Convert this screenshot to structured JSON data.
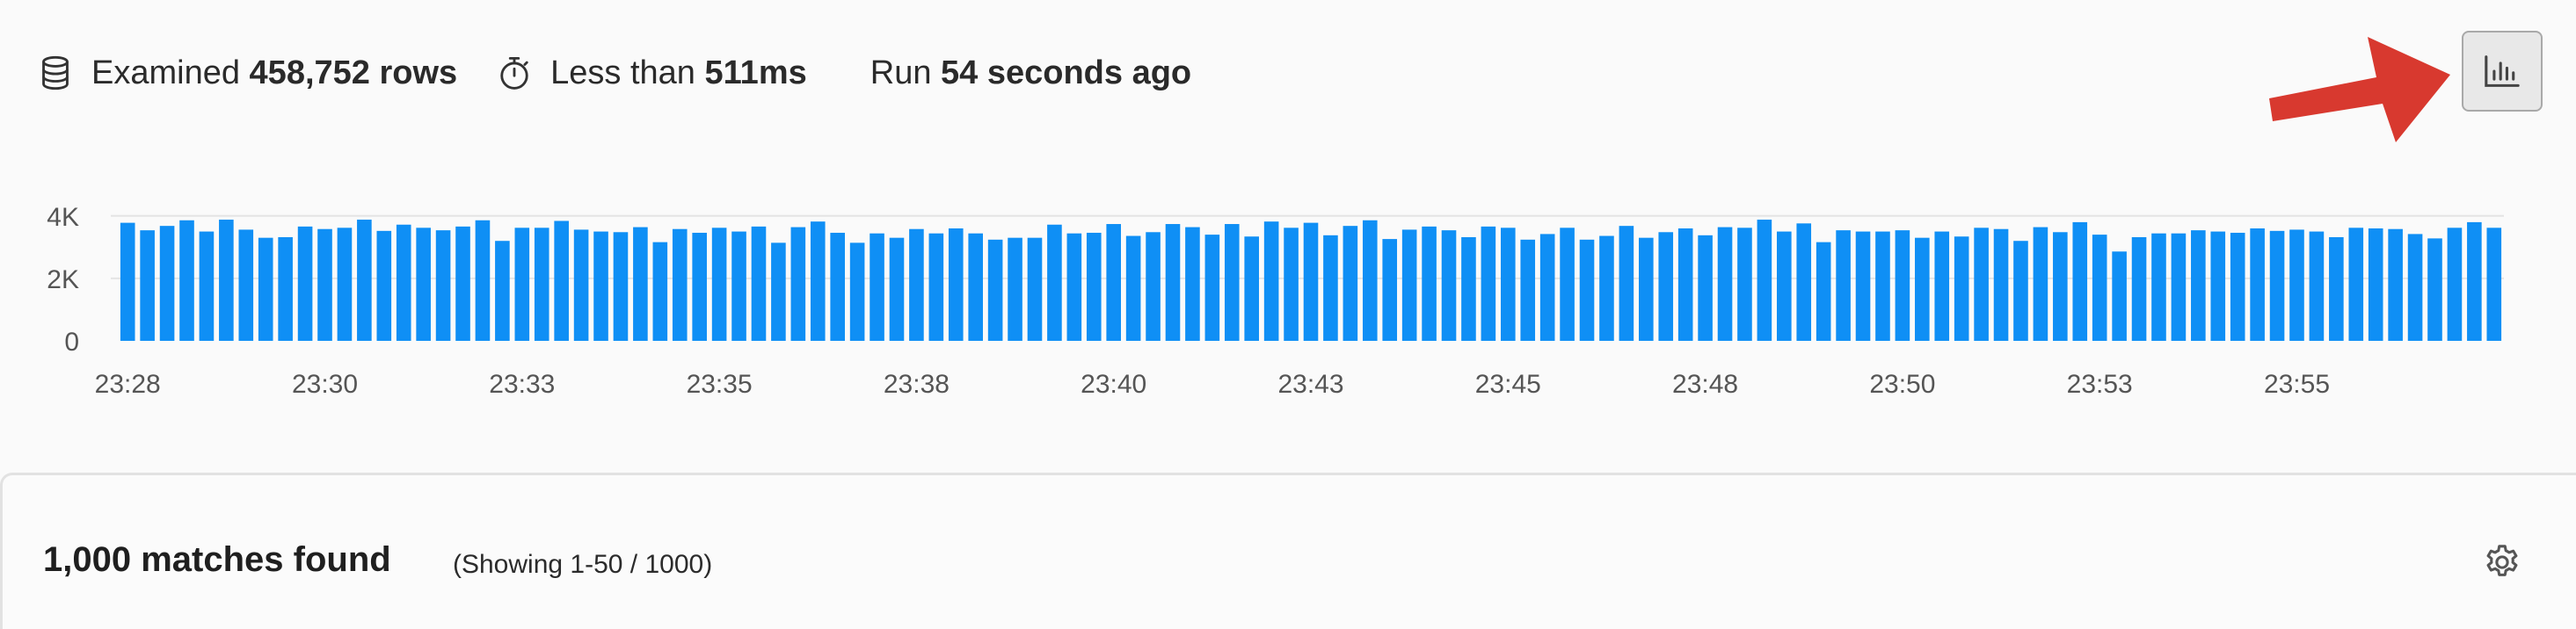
{
  "stats": {
    "examined_prefix": "Examined",
    "examined_value": "458,752 rows",
    "duration_prefix": "Less than",
    "duration_value": "511ms",
    "run_prefix": "Run",
    "run_value": "54 seconds ago"
  },
  "icons": {
    "database": "database-icon",
    "timer": "stopwatch-icon",
    "histogram_toggle": "bar-chart-icon",
    "annotation": "red-arrow",
    "settings": "gear-icon"
  },
  "colors": {
    "bar": "#0f8ff5",
    "annotation_arrow": "#d8392f",
    "button_bg": "#e8e8e8"
  },
  "chart_data": {
    "type": "bar",
    "title": "",
    "xlabel": "",
    "ylabel": "",
    "ylim": [
      0,
      4500
    ],
    "y_ticks": [
      "0",
      "2K",
      "4K"
    ],
    "y_tick_values": [
      0,
      2000,
      4000
    ],
    "x_ticks": [
      "23:28",
      "23:30",
      "23:33",
      "23:35",
      "23:38",
      "23:40",
      "23:43",
      "23:45",
      "23:48",
      "23:50",
      "23:53",
      "23:55"
    ],
    "x_tick_bar_index": [
      0,
      10,
      20,
      30,
      40,
      50,
      60,
      70,
      80,
      90,
      100,
      110
    ],
    "grid": "horizontal",
    "values": [
      3780,
      3540,
      3680,
      3860,
      3500,
      3880,
      3560,
      3300,
      3320,
      3660,
      3580,
      3620,
      3880,
      3520,
      3720,
      3620,
      3540,
      3660,
      3860,
      3200,
      3620,
      3620,
      3840,
      3560,
      3500,
      3480,
      3640,
      3160,
      3580,
      3460,
      3620,
      3500,
      3660,
      3140,
      3640,
      3820,
      3460,
      3140,
      3440,
      3300,
      3580,
      3440,
      3600,
      3440,
      3240,
      3300,
      3300,
      3720,
      3440,
      3460,
      3740,
      3360,
      3480,
      3740,
      3640,
      3400,
      3740,
      3340,
      3820,
      3620,
      3780,
      3380,
      3680,
      3860,
      3260,
      3560,
      3660,
      3540,
      3320,
      3660,
      3620,
      3240,
      3420,
      3620,
      3240,
      3360,
      3680,
      3300,
      3480,
      3600,
      3380,
      3640,
      3620,
      3880,
      3500,
      3760,
      3160,
      3540,
      3500,
      3500,
      3540,
      3300,
      3500,
      3340,
      3620,
      3580,
      3200,
      3640,
      3480,
      3800,
      3400,
      2860,
      3320,
      3440,
      3440,
      3540,
      3500,
      3460,
      3600,
      3520,
      3560,
      3500,
      3320,
      3620,
      3600,
      3580,
      3420,
      3280,
      3620,
      3800,
      3620
    ]
  },
  "results": {
    "title": "1,000 matches found",
    "subtitle": "(Showing 1-50 / 1000)"
  }
}
